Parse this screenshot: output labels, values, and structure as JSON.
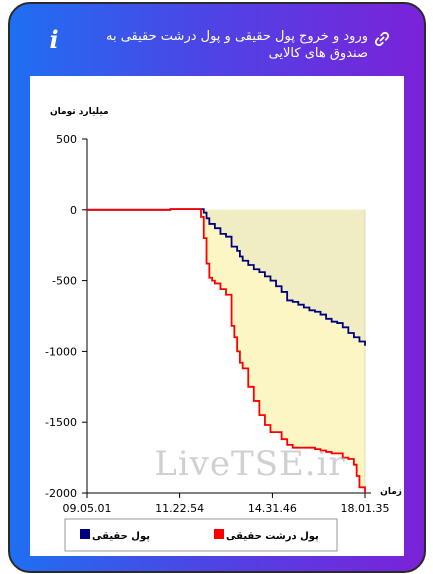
{
  "header": {
    "title": "ورود و خروج پول حقیقی و پول درشت حقیقی به صندوق های کالایی",
    "info_icon": "info-icon",
    "link_icon": "link-icon"
  },
  "watermark": "LiveTSE.ir",
  "chart_data": {
    "type": "line",
    "title": "",
    "ylabel": "میلیارد تومان",
    "xlabel": "زمان",
    "ylim": [
      -2000,
      500
    ],
    "yticks": [
      500,
      0,
      -500,
      -1000,
      -1500,
      -2000
    ],
    "ytick_labels": [
      "500",
      "0",
      "-500",
      "-1000",
      "-1500",
      "-2000"
    ],
    "xlim": [
      0,
      100
    ],
    "xticks": [
      0,
      33.3,
      66.7,
      100
    ],
    "xtick_labels": [
      "09.05.01",
      "11.22.54",
      "14.31.46",
      "18.01.35"
    ],
    "grid": false,
    "legend_position": "bottom",
    "colors": {
      "fill_between": "#fcf6c4",
      "fill_blue_area": "#f0edc4",
      "axis": "#000000"
    },
    "series": [
      {
        "name": "پول حقیقی",
        "color": "#000080",
        "x": [
          0,
          10,
          20,
          26,
          30,
          36,
          40,
          42,
          43,
          44,
          46,
          48,
          50,
          52,
          54,
          55,
          56,
          58,
          60,
          62,
          64,
          66,
          68,
          70,
          72,
          74,
          76,
          78,
          80,
          82,
          84,
          86,
          88,
          90,
          92,
          94,
          96,
          98,
          100
        ],
        "y": [
          0,
          0,
          0,
          0,
          5,
          5,
          5,
          -20,
          -60,
          -100,
          -130,
          -170,
          -190,
          -260,
          -290,
          -330,
          -360,
          -390,
          -420,
          -440,
          -470,
          -500,
          -540,
          -580,
          -640,
          -650,
          -670,
          -690,
          -710,
          -720,
          -740,
          -770,
          -790,
          -800,
          -830,
          -870,
          -900,
          -930,
          -960
        ]
      },
      {
        "name": "پول درشت حقیقی",
        "color": "#ff0000",
        "x": [
          0,
          10,
          20,
          26,
          30,
          36,
          40,
          41,
          42,
          43,
          44,
          45,
          46,
          48,
          50,
          52,
          53,
          54,
          55,
          56,
          58,
          60,
          62,
          64,
          66,
          68,
          70,
          72,
          74,
          76,
          78,
          80,
          82,
          84,
          86,
          88,
          90,
          92,
          94,
          96,
          97,
          98,
          100
        ],
        "y": [
          0,
          0,
          0,
          0,
          5,
          5,
          5,
          -50,
          -200,
          -380,
          -480,
          -500,
          -520,
          -560,
          -600,
          -820,
          -900,
          -1000,
          -1080,
          -1120,
          -1250,
          -1350,
          -1450,
          -1520,
          -1570,
          -1570,
          -1620,
          -1660,
          -1680,
          -1680,
          -1680,
          -1680,
          -1690,
          -1700,
          -1710,
          -1720,
          -1720,
          -1750,
          -1760,
          -1800,
          -1880,
          -1960,
          -2000
        ]
      }
    ]
  }
}
